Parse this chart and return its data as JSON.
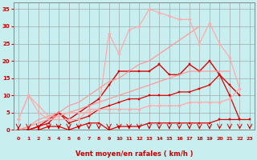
{
  "background_color": "#c8eef0",
  "grid_color": "#999999",
  "xlabel": "Vent moyen/en rafales ( km/h )",
  "xlabel_color": "#cc0000",
  "tick_color": "#cc0000",
  "x_values": [
    0,
    1,
    2,
    3,
    4,
    5,
    6,
    7,
    8,
    9,
    10,
    11,
    12,
    13,
    14,
    15,
    16,
    17,
    18,
    19,
    20,
    21,
    22,
    23
  ],
  "series": [
    {
      "name": "flat_bottom_dark",
      "color": "#dd0000",
      "linewidth": 0.9,
      "marker": "s",
      "markersize": 1.8,
      "y": [
        0,
        0,
        0,
        1,
        1,
        0,
        1,
        2,
        2,
        0,
        1,
        1,
        1,
        2,
        2,
        2,
        2,
        2,
        2,
        2,
        3,
        3,
        3,
        3
      ]
    },
    {
      "name": "rising_straight_dark1",
      "color": "#dd0000",
      "linewidth": 0.9,
      "marker": "s",
      "markersize": 1.8,
      "y": [
        0,
        0,
        1,
        2,
        5,
        2,
        3,
        4,
        6,
        7,
        8,
        9,
        9,
        10,
        10,
        10,
        11,
        11,
        12,
        13,
        16,
        10,
        3,
        null
      ]
    },
    {
      "name": "high_dark_markers",
      "color": "#dd0000",
      "linewidth": 1.0,
      "marker": "s",
      "markersize": 2.0,
      "y": [
        0,
        0,
        1,
        3,
        5,
        3,
        5,
        7,
        9,
        13,
        17,
        17,
        17,
        17,
        19,
        16,
        16,
        19,
        17,
        20,
        16,
        13,
        10,
        null
      ]
    },
    {
      "name": "straight_diagonal_light1",
      "color": "#ff9999",
      "linewidth": 0.9,
      "marker": null,
      "markersize": 0,
      "y": [
        0,
        1,
        2,
        3,
        4,
        5,
        6,
        7,
        8,
        9,
        10,
        11,
        12,
        13,
        14,
        15,
        16,
        17,
        17,
        17,
        17,
        17,
        null,
        null
      ]
    },
    {
      "name": "straight_diagonal_light2",
      "color": "#ff9999",
      "linewidth": 0.9,
      "marker": null,
      "markersize": 0,
      "y": [
        0,
        1,
        3,
        4,
        5,
        7,
        8,
        10,
        12,
        14,
        15,
        17,
        19,
        20,
        22,
        24,
        26,
        28,
        30,
        null,
        null,
        null,
        null,
        null
      ]
    },
    {
      "name": "wavy_light_low",
      "color": "#ffaaaa",
      "linewidth": 0.9,
      "marker": "D",
      "markersize": 1.8,
      "y": [
        3,
        10,
        5,
        3,
        3,
        3,
        3,
        6,
        6,
        6,
        6,
        6,
        6,
        7,
        7,
        7,
        7,
        8,
        8,
        8,
        8,
        9,
        12,
        null
      ]
    },
    {
      "name": "spiky_light_high",
      "color": "#ffaaaa",
      "linewidth": 0.9,
      "marker": "D",
      "markersize": 1.8,
      "y": [
        3,
        10,
        7,
        4,
        4,
        5,
        5,
        5,
        6,
        28,
        22,
        29,
        30,
        35,
        34,
        33,
        32,
        32,
        25,
        31,
        25,
        21,
        12,
        null
      ]
    }
  ],
  "ylim": [
    0,
    37
  ],
  "xlim": [
    -0.5,
    23.5
  ],
  "yticks": [
    0,
    5,
    10,
    15,
    20,
    25,
    30,
    35
  ],
  "xticks": [
    0,
    1,
    2,
    3,
    4,
    5,
    6,
    7,
    8,
    9,
    10,
    11,
    12,
    13,
    14,
    15,
    16,
    17,
    18,
    19,
    20,
    21,
    22,
    23
  ],
  "arrow_color": "#cc0000",
  "spine_color": "#888888"
}
